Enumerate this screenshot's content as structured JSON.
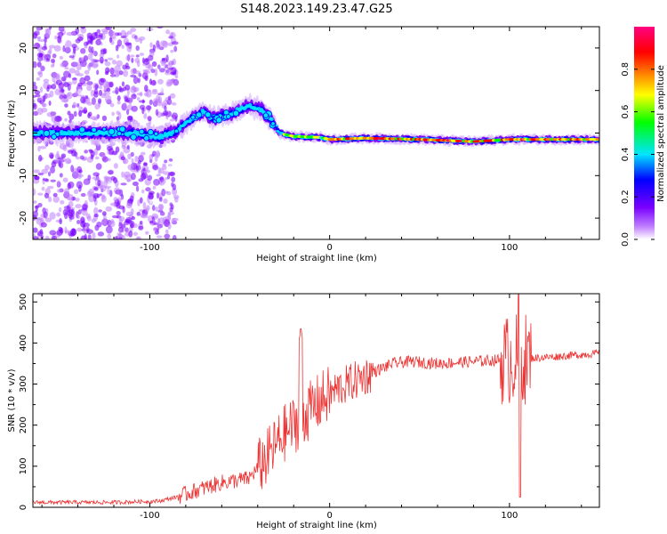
{
  "figure": {
    "title": "S148.2023.149.23.47.G25"
  },
  "chart_data": [
    {
      "type": "heatmap",
      "name": "spectrogram",
      "xlabel": "Height of straight line (km)",
      "ylabel": "Frequency (Hz)",
      "xlim": [
        -165,
        150
      ],
      "ylim": [
        -25,
        25
      ],
      "xticks": [
        -100,
        0,
        100
      ],
      "yticks": [
        -20,
        -10,
        0,
        10,
        20
      ],
      "grid": false,
      "description_of_ridge": [
        {
          "x": -165,
          "y": 0.0
        },
        {
          "x": -110,
          "y": 0.0
        },
        {
          "x": -95,
          "y": -1.0
        },
        {
          "x": -85,
          "y": 0.5
        },
        {
          "x": -78,
          "y": 3.0
        },
        {
          "x": -70,
          "y": 5.0
        },
        {
          "x": -65,
          "y": 3.5
        },
        {
          "x": -55,
          "y": 4.5
        },
        {
          "x": -45,
          "y": 6.5
        },
        {
          "x": -38,
          "y": 5.5
        },
        {
          "x": -32,
          "y": 3.0
        },
        {
          "x": -28,
          "y": 0.0
        },
        {
          "x": -20,
          "y": -0.8
        },
        {
          "x": -5,
          "y": -1.0
        },
        {
          "x": 0,
          "y": -1.5
        },
        {
          "x": 20,
          "y": -1.2
        },
        {
          "x": 50,
          "y": -1.5
        },
        {
          "x": 80,
          "y": -2.0
        },
        {
          "x": 100,
          "y": -1.5
        },
        {
          "x": 150,
          "y": -1.5
        }
      ],
      "colorbar": {
        "label": "Normalized spectral amplitude",
        "ticks": [
          "0.0",
          "0.2",
          "0.4",
          "0.6",
          "0.8"
        ],
        "range": [
          0,
          1
        ],
        "colors": [
          "#ffffff",
          "#c080ff",
          "#7a00ff",
          "#0000ff",
          "#00e5ff",
          "#00ff00",
          "#ffff00",
          "#ff8000",
          "#ff0000",
          "#ff0080"
        ]
      }
    },
    {
      "type": "line",
      "name": "snr",
      "xlabel": "Height of straight line (km)",
      "ylabel": "SNR (10 * v/v)",
      "xlim": [
        -165,
        150
      ],
      "ylim": [
        0,
        520
      ],
      "xticks": [
        -100,
        0,
        100
      ],
      "yticks": [
        0,
        100,
        200,
        300,
        400,
        500
      ],
      "color": "#ee3333",
      "trend": [
        {
          "x": -165,
          "y": 12
        },
        {
          "x": -120,
          "y": 12
        },
        {
          "x": -95,
          "y": 15
        },
        {
          "x": -85,
          "y": 25
        },
        {
          "x": -75,
          "y": 40
        },
        {
          "x": -60,
          "y": 60
        },
        {
          "x": -45,
          "y": 70
        },
        {
          "x": -35,
          "y": 120
        },
        {
          "x": -25,
          "y": 180
        },
        {
          "x": -15,
          "y": 220
        },
        {
          "x": -5,
          "y": 260
        },
        {
          "x": 5,
          "y": 290
        },
        {
          "x": 15,
          "y": 310
        },
        {
          "x": 25,
          "y": 330
        },
        {
          "x": 35,
          "y": 350
        },
        {
          "x": 45,
          "y": 355
        },
        {
          "x": 60,
          "y": 350
        },
        {
          "x": 80,
          "y": 355
        },
        {
          "x": 100,
          "y": 360
        },
        {
          "x": 120,
          "y": 365
        },
        {
          "x": 150,
          "y": 375
        }
      ],
      "notable_peaks": [
        {
          "x": -16,
          "y": 440
        },
        {
          "x": 105,
          "y": 520
        },
        {
          "x": 106,
          "y": 25
        }
      ]
    }
  ]
}
